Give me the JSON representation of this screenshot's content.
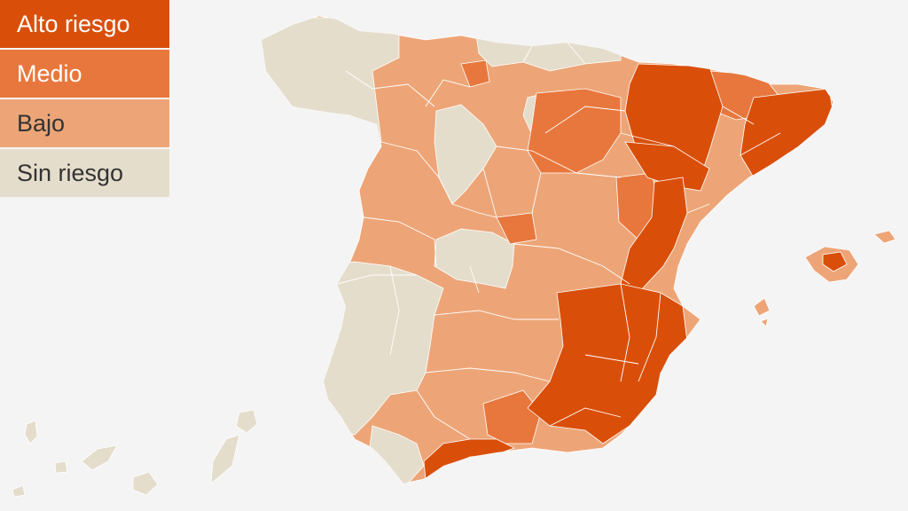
{
  "colors": {
    "alto": "#d94f0a",
    "medio": "#e8773d",
    "bajo": "#eda577",
    "sin": "#e5ddcc",
    "background": "#f4f4f4",
    "border": "#ffffff"
  },
  "legend": {
    "items": [
      {
        "label": "Alto riesgo",
        "level": "alto",
        "text_color": "#ffffff"
      },
      {
        "label": "Medio",
        "level": "medio",
        "text_color": "#ffffff"
      },
      {
        "label": "Bajo",
        "level": "bajo",
        "text_color": "#333333"
      },
      {
        "label": "Sin riesgo",
        "level": "sin",
        "text_color": "#333333"
      }
    ]
  }
}
